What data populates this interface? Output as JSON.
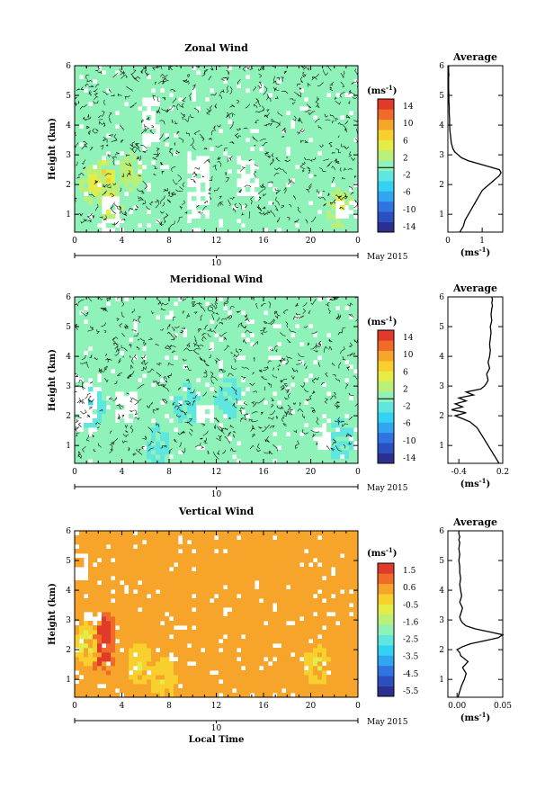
{
  "figure": {
    "date_label": "May 2015",
    "date_tick": "10",
    "xlabel": "Local Time",
    "ylabel": "Height (km)",
    "unit": "(ms",
    "unit_exp": "-1",
    "unit_close": ")"
  },
  "chart_data": [
    {
      "type": "heatmap",
      "title": "Zonal Wind",
      "xlabel": "",
      "ylabel": "Height (km)",
      "x_ticks": [
        "0",
        "4",
        "8",
        "12",
        "16",
        "20",
        "0"
      ],
      "y_ticks": [
        "1",
        "2",
        "3",
        "4",
        "5",
        "6"
      ],
      "xlim": [
        0,
        24
      ],
      "ylim": [
        0.4,
        6
      ],
      "colorbar": {
        "ticks": [
          "14",
          "10",
          "6",
          "2",
          "-2",
          "-6",
          "-10",
          "-14"
        ],
        "range": [
          -16,
          16
        ]
      },
      "dominant_value": -1,
      "gap_regions": [
        [
          3.0,
          0.4,
          1.6
        ],
        [
          10.5,
          0.8,
          3.0
        ],
        [
          14.8,
          1.6,
          2.8
        ],
        [
          23.0,
          0.8,
          1.4
        ],
        [
          6.5,
          3.3,
          5.0
        ]
      ],
      "hot_spots": [
        [
          2.5,
          2.2,
          8
        ],
        [
          3.0,
          1.4,
          6
        ],
        [
          1.6,
          2.0,
          6
        ],
        [
          4.8,
          2.4,
          4
        ],
        [
          22.5,
          1.2,
          6
        ]
      ]
    },
    {
      "type": "line",
      "title": "Average",
      "xlabel": "(ms-1)",
      "x_ticks": [
        "0",
        "1"
      ],
      "y_ticks": [
        "1",
        "2",
        "3",
        "4",
        "5",
        "6"
      ],
      "xlim": [
        0,
        1.6
      ],
      "ylim": [
        0.4,
        6
      ],
      "x": [
        0.35,
        0.45,
        0.5,
        0.6,
        0.7,
        0.8,
        0.9,
        1.0,
        1.1,
        1.2,
        1.3,
        1.4,
        1.5,
        1.55,
        1.5,
        1.2,
        0.9,
        0.6,
        0.4,
        0.3,
        0.2,
        0.15,
        0.1,
        0.08,
        0.06,
        0.05,
        0.05,
        0.04,
        0.04,
        0.03,
        0.03,
        0.02,
        0.02,
        0.02,
        0.03,
        0.02,
        0.02,
        0.02
      ],
      "y": [
        0.4,
        0.6,
        0.8,
        1.0,
        1.2,
        1.4,
        1.6,
        1.8,
        1.9,
        2.0,
        2.1,
        2.2,
        2.3,
        2.4,
        2.5,
        2.6,
        2.7,
        2.8,
        2.9,
        3.0,
        3.1,
        3.2,
        3.4,
        3.6,
        3.8,
        4.0,
        4.2,
        4.4,
        4.6,
        4.8,
        5.0,
        5.2,
        5.4,
        5.6,
        5.7,
        5.8,
        5.9,
        6.0
      ]
    },
    {
      "type": "heatmap",
      "title": "Meridional Wind",
      "xlabel": "",
      "ylabel": "Height (km)",
      "x_ticks": [
        "0",
        "4",
        "8",
        "12",
        "16",
        "20",
        "0"
      ],
      "y_ticks": [
        "1",
        "2",
        "3",
        "4",
        "5",
        "6"
      ],
      "xlim": [
        0,
        24
      ],
      "ylim": [
        0.4,
        6
      ],
      "colorbar": {
        "ticks": [
          "14",
          "10",
          "6",
          "2",
          "-2",
          "-6",
          "-10",
          "-14"
        ],
        "range": [
          -16,
          16
        ]
      },
      "dominant_value": 0,
      "gap_regions": [
        [
          1.0,
          1.5,
          3.2
        ],
        [
          4.5,
          1.8,
          2.8
        ],
        [
          11.0,
          1.8,
          2.4
        ],
        [
          21.0,
          0.8,
          1.6
        ]
      ],
      "hot_spots": [
        [
          1.5,
          2.3,
          -5
        ],
        [
          9.5,
          2.4,
          -3
        ],
        [
          13.0,
          2.6,
          -4
        ],
        [
          22.5,
          1.2,
          -4
        ],
        [
          7.0,
          1.0,
          -3
        ]
      ]
    },
    {
      "type": "line",
      "title": "Average",
      "xlabel": "(ms-1)",
      "x_ticks": [
        "-0.4",
        "0.2"
      ],
      "y_ticks": [
        "1",
        "2",
        "3",
        "4",
        "5",
        "6"
      ],
      "xlim": [
        -0.55,
        0.2
      ],
      "ylim": [
        0.4,
        6
      ],
      "x": [
        0.15,
        0.1,
        0.05,
        0.0,
        -0.05,
        -0.1,
        -0.15,
        -0.25,
        -0.35,
        -0.45,
        -0.3,
        -0.5,
        -0.35,
        -0.45,
        -0.3,
        -0.4,
        -0.2,
        -0.3,
        -0.1,
        -0.05,
        -0.02,
        0.0,
        -0.02,
        0.02,
        0.0,
        0.02,
        0.03,
        0.02,
        0.03,
        0.04,
        0.03,
        0.05,
        0.04,
        0.05,
        0.06,
        0.05,
        0.06,
        0.05
      ],
      "y": [
        0.4,
        0.6,
        0.8,
        1.0,
        1.2,
        1.4,
        1.6,
        1.8,
        1.9,
        2.0,
        2.1,
        2.2,
        2.3,
        2.4,
        2.5,
        2.6,
        2.7,
        2.8,
        2.9,
        3.0,
        3.1,
        3.2,
        3.4,
        3.6,
        3.8,
        4.0,
        4.2,
        4.4,
        4.6,
        4.8,
        5.0,
        5.2,
        5.4,
        5.6,
        5.7,
        5.8,
        5.9,
        6.0
      ]
    },
    {
      "type": "heatmap",
      "title": "Vertical Wind",
      "xlabel": "Local Time",
      "ylabel": "Height (km)",
      "x_ticks": [
        "0",
        "4",
        "8",
        "12",
        "16",
        "20",
        "0"
      ],
      "y_ticks": [
        "1",
        "2",
        "3",
        "4",
        "5",
        "6"
      ],
      "xlim": [
        0,
        24
      ],
      "ylim": [
        0.4,
        6
      ],
      "colorbar": {
        "ticks": [
          "1.5",
          "0.6",
          "-0.5",
          "-1.6",
          "-2.5",
          "-3.5",
          "-4.5",
          "-5.5"
        ],
        "range": [
          -6,
          2
        ]
      },
      "dominant_value": 0.6,
      "gap_regions": [
        [
          0.3,
          4.4,
          5.3
        ],
        [
          1.5,
          3.0,
          3.3
        ],
        [
          9.3,
          2.7,
          2.8
        ]
      ],
      "hot_spots": [
        [
          2.3,
          1.8,
          1.8
        ],
        [
          2.5,
          2.6,
          1.9
        ],
        [
          1.0,
          2.2,
          -1.0
        ],
        [
          5.5,
          1.5,
          -0.6
        ],
        [
          20.5,
          1.5,
          -0.8
        ],
        [
          7.5,
          1.0,
          -0.6
        ]
      ]
    },
    {
      "type": "line",
      "title": "Average",
      "xlabel": "(ms-1)",
      "x_ticks": [
        "0.00",
        "0.05"
      ],
      "y_ticks": [
        "1",
        "2",
        "3",
        "4",
        "5",
        "6"
      ],
      "xlim": [
        -0.01,
        0.05
      ],
      "ylim": [
        0.4,
        6
      ],
      "x": [
        0.001,
        0.003,
        0.005,
        0.008,
        0.01,
        0.006,
        0.012,
        0.004,
        0.003,
        0.0,
        0.006,
        0.015,
        0.03,
        0.045,
        0.05,
        0.035,
        0.02,
        0.01,
        0.006,
        0.004,
        0.003,
        0.004,
        0.006,
        0.003,
        0.005,
        0.004,
        0.003,
        0.004,
        0.003,
        0.003,
        0.002,
        0.003,
        0.002,
        0.003,
        0.002,
        0.003,
        0.002,
        0.002
      ],
      "y": [
        0.4,
        0.6,
        0.8,
        1.0,
        1.2,
        1.4,
        1.6,
        1.8,
        1.9,
        2.0,
        2.1,
        2.2,
        2.3,
        2.4,
        2.5,
        2.6,
        2.7,
        2.8,
        2.9,
        3.0,
        3.1,
        3.2,
        3.4,
        3.6,
        3.8,
        4.0,
        4.2,
        4.4,
        4.6,
        4.8,
        5.0,
        5.2,
        5.4,
        5.6,
        5.7,
        5.8,
        5.9,
        6.0
      ]
    }
  ]
}
